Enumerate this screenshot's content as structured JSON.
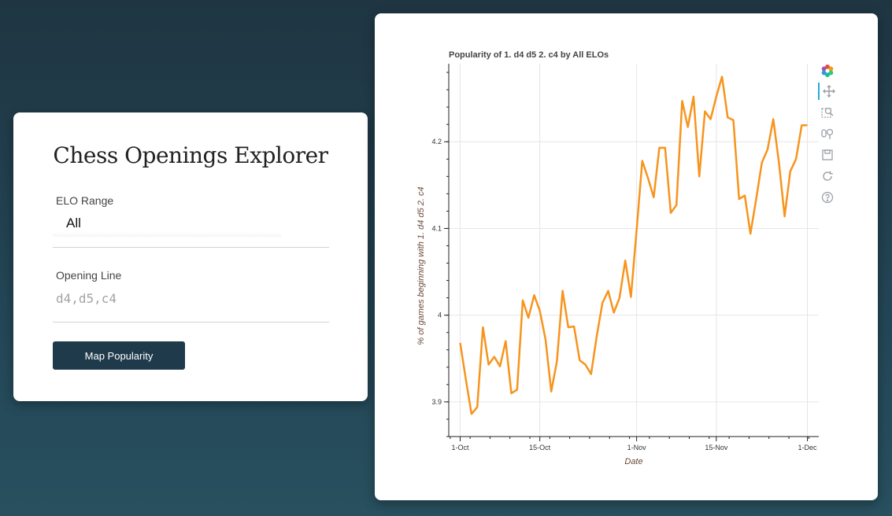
{
  "form": {
    "title": "Chess Openings Explorer",
    "elo_label": "ELO Range",
    "elo_value": "All",
    "opening_label": "Opening Line",
    "opening_placeholder": "d4,d5,c4",
    "submit_label": "Map Popularity"
  },
  "toolbar": {
    "tools": [
      "bokeh-logo-icon",
      "pan-icon",
      "box-zoom-icon",
      "wheel-zoom-icon",
      "save-icon",
      "reset-icon",
      "help-icon"
    ]
  },
  "colors": {
    "line": "#f7941d",
    "button": "#1f3a4a",
    "grid": "#e6e6e6"
  },
  "chart_data": {
    "type": "line",
    "title": "Popularity of 1. d4 d5 2. c4 by All ELOs",
    "xlabel": "Date",
    "ylabel": "% of games beginning with 1. d4 d5 2. c4",
    "x_ticks": [
      "1-Oct",
      "15-Oct",
      "1-Nov",
      "15-Nov",
      "1-Dec"
    ],
    "x_tick_days": [
      0,
      14,
      31,
      45,
      61
    ],
    "y_ticks": [
      "3.9",
      "4",
      "4.1",
      "4.2"
    ],
    "y_tick_values": [
      3.9,
      4.0,
      4.1,
      4.2
    ],
    "xlim": [
      -2,
      63
    ],
    "ylim": [
      3.86,
      4.29
    ],
    "series": [
      {
        "name": "popularity",
        "x": [
          0,
          1,
          2,
          3,
          4,
          5,
          6,
          7,
          8,
          9,
          10,
          11,
          12,
          13,
          14,
          15,
          16,
          17,
          18,
          19,
          20,
          21,
          22,
          23,
          24,
          25,
          26,
          27,
          28,
          29,
          30,
          31,
          32,
          33,
          34,
          35,
          36,
          37,
          38,
          39,
          40,
          41,
          42,
          43,
          44,
          45,
          46,
          47,
          48,
          49,
          50,
          51,
          52,
          53,
          54,
          55,
          56,
          57,
          58,
          59,
          60,
          61
        ],
        "values": [
          3.968,
          3.926,
          3.886,
          3.894,
          3.986,
          3.943,
          3.952,
          3.941,
          3.97,
          3.91,
          3.914,
          4.017,
          3.997,
          4.023,
          4.005,
          3.972,
          3.912,
          3.947,
          4.028,
          3.986,
          3.987,
          3.948,
          3.943,
          3.932,
          3.976,
          4.014,
          4.028,
          4.003,
          4.02,
          4.063,
          4.021,
          4.098,
          4.178,
          4.158,
          4.136,
          4.193,
          4.193,
          4.118,
          4.127,
          4.247,
          4.217,
          4.252,
          4.16,
          4.235,
          4.226,
          4.252,
          4.275,
          4.228,
          4.225,
          4.134,
          4.138,
          4.094,
          4.134,
          4.176,
          4.191,
          4.226,
          4.176,
          4.114,
          4.166,
          4.18,
          4.219,
          4.219
        ]
      }
    ]
  }
}
